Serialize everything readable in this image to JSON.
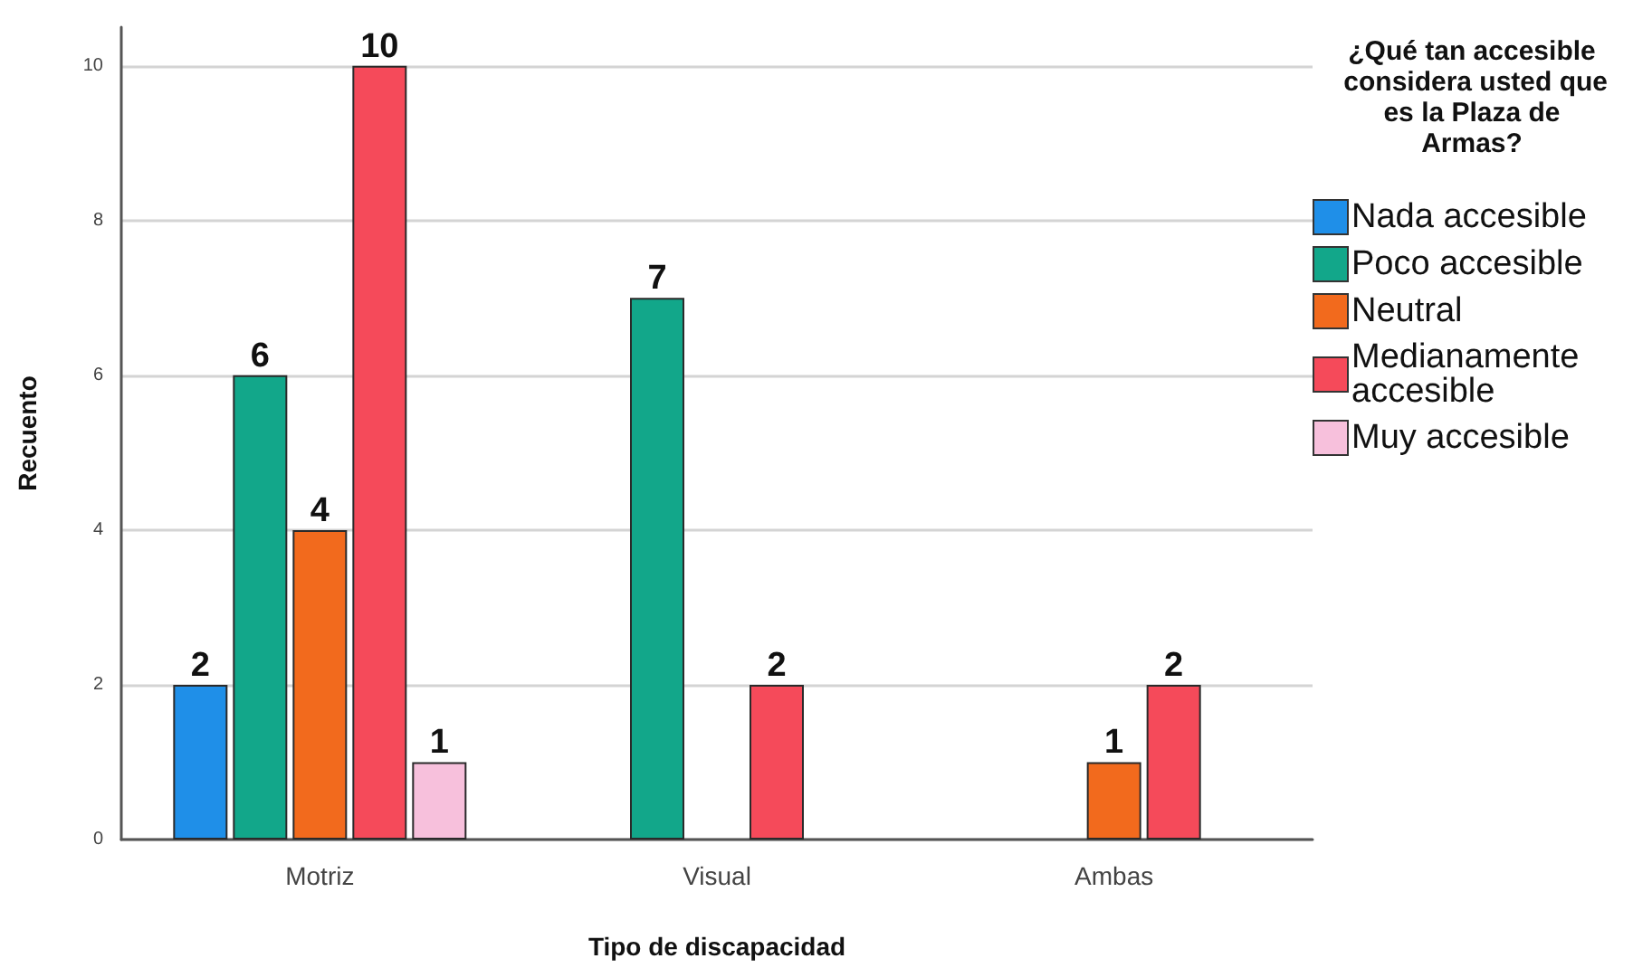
{
  "chart_data": {
    "type": "bar",
    "xlabel": "Tipo de discapacidad",
    "ylabel": "Recuento",
    "legend_title": "¿Qué tan accesible considera usted que es la Plaza de Armas?",
    "categories": [
      "Motriz",
      "Visual",
      "Ambas"
    ],
    "series": [
      {
        "name": "Nada accesible",
        "color": "#1f8fe8",
        "values": [
          2,
          null,
          null
        ]
      },
      {
        "name": "Poco accesible",
        "color": "#12a78a",
        "values": [
          6,
          7,
          null
        ]
      },
      {
        "name": "Neutral",
        "color": "#f26a1d",
        "values": [
          4,
          null,
          1
        ]
      },
      {
        "name": "Medianamente accesible",
        "color": "#f54a5a",
        "values": [
          10,
          2,
          2
        ]
      },
      {
        "name": "Muy accesible",
        "color": "#f7c0dc",
        "values": [
          1,
          null,
          null
        ]
      }
    ],
    "ylim": [
      0,
      10.5
    ],
    "yticks": [
      0,
      2,
      4,
      6,
      8,
      10
    ],
    "grid": "y",
    "legend": "right",
    "data_labels": true
  }
}
